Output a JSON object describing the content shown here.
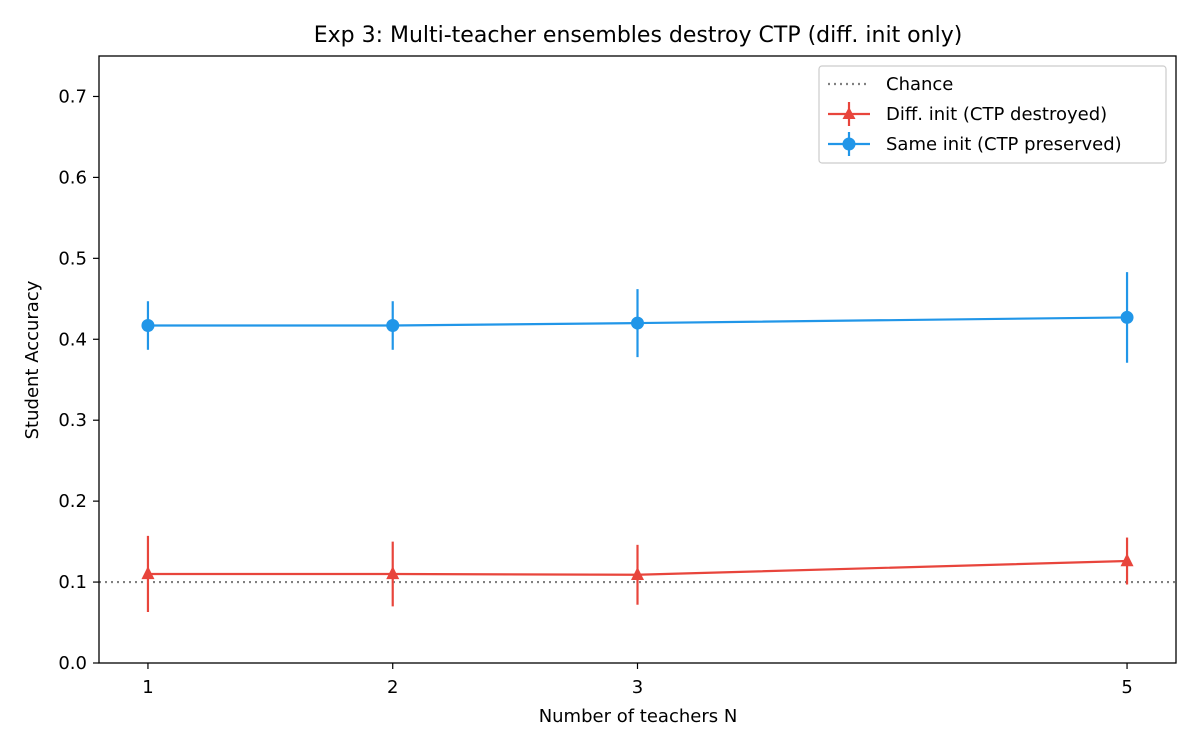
{
  "chart_data": {
    "type": "line",
    "title": "Exp 3: Multi-teacher ensembles destroy CTP (diff. init only)",
    "xlabel": "Number of teachers N",
    "ylabel": "Student Accuracy",
    "x": [
      1,
      2,
      3,
      5
    ],
    "xticks": [
      "1",
      "2",
      "3",
      "5"
    ],
    "xlim": [
      0.8,
      5.2
    ],
    "ylim": [
      0.0,
      0.75
    ],
    "yticks": [
      "0.0",
      "0.1",
      "0.2",
      "0.3",
      "0.4",
      "0.5",
      "0.6",
      "0.7"
    ],
    "grid": false,
    "legend_position": "top-right",
    "reference_line": {
      "name": "Chance",
      "y": 0.1,
      "color": "#808080",
      "style": "dotted"
    },
    "series": [
      {
        "name": "Diff. init (CTP destroyed)",
        "color": "#e8453c",
        "marker": "triangle",
        "values": [
          0.11,
          0.11,
          0.109,
          0.126
        ],
        "error": [
          0.047,
          0.04,
          0.037,
          0.029
        ]
      },
      {
        "name": "Same init (CTP preserved)",
        "color": "#2196e8",
        "marker": "circle",
        "values": [
          0.417,
          0.417,
          0.42,
          0.427
        ],
        "error": [
          0.03,
          0.03,
          0.042,
          0.056
        ]
      }
    ]
  }
}
